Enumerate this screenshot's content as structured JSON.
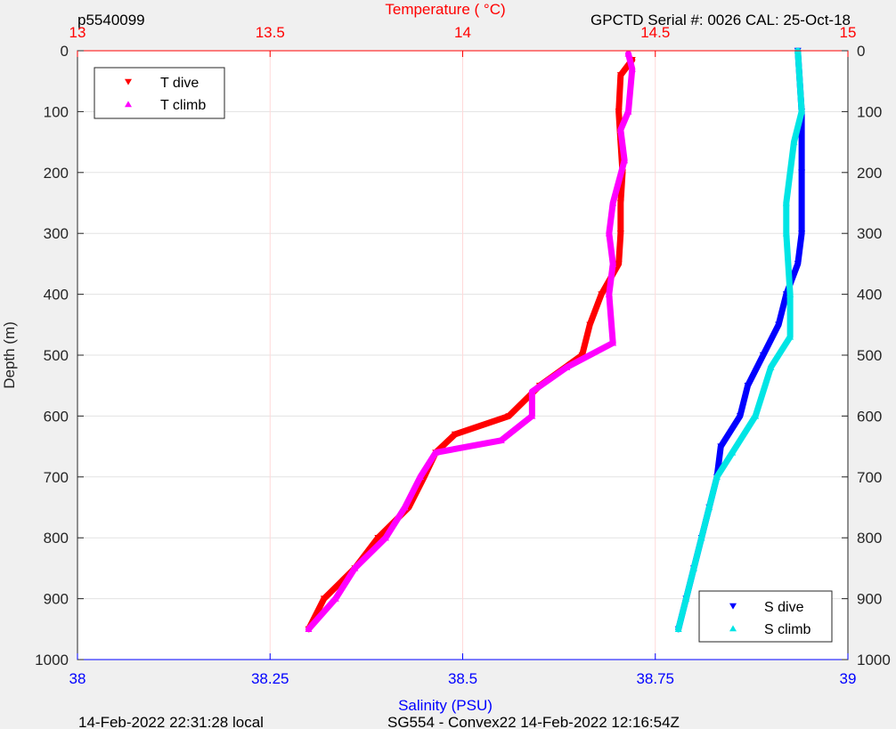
{
  "header": {
    "plot_id": "p5540099",
    "serial": "GPCTD Serial #: 0026 CAL: 25-Oct-18"
  },
  "footer": {
    "local_time": "14-Feb-2022 22:31:28 local",
    "mission": "SG554 - Convex22 14-Feb-2022 12:16:54Z"
  },
  "chart_data": {
    "type": "line",
    "title": "",
    "ylabel": "Depth (m)",
    "ylim": [
      0,
      1000
    ],
    "y_reversed": true,
    "y_ticks": [
      "0",
      "100",
      "200",
      "300",
      "400",
      "500",
      "600",
      "700",
      "800",
      "900",
      "1000"
    ],
    "x_top": {
      "label": "Temperature (    °C)",
      "range": [
        13,
        15
      ],
      "ticks": [
        "13",
        "13.5",
        "14",
        "14.5",
        "15"
      ],
      "color": "#ff0000"
    },
    "x_bottom": {
      "label": "Salinity (PSU)",
      "range": [
        38,
        39
      ],
      "ticks": [
        "38",
        "38.25",
        "38.5",
        "38.75",
        "39"
      ],
      "color": "#0000ff"
    },
    "grid": true,
    "legend_temperature": "top-left",
    "legend_salinity": "bottom-right",
    "series": [
      {
        "name": "T dive",
        "axis": "top",
        "color": "#ff0000",
        "marker": "triangle-down",
        "points": [
          [
            14.44,
            15
          ],
          [
            14.41,
            40
          ],
          [
            14.405,
            100
          ],
          [
            14.41,
            150
          ],
          [
            14.415,
            200
          ],
          [
            14.41,
            250
          ],
          [
            14.41,
            300
          ],
          [
            14.405,
            350
          ],
          [
            14.36,
            400
          ],
          [
            14.33,
            450
          ],
          [
            14.31,
            500
          ],
          [
            14.2,
            550
          ],
          [
            14.12,
            600
          ],
          [
            13.98,
            630
          ],
          [
            13.93,
            660
          ],
          [
            13.9,
            700
          ],
          [
            13.86,
            750
          ],
          [
            13.78,
            800
          ],
          [
            13.72,
            850
          ],
          [
            13.64,
            900
          ],
          [
            13.6,
            950
          ]
        ]
      },
      {
        "name": "T climb",
        "axis": "top",
        "color": "#ff00ff",
        "marker": "triangle-up",
        "points": [
          [
            14.43,
            5
          ],
          [
            14.44,
            30
          ],
          [
            14.43,
            100
          ],
          [
            14.41,
            130
          ],
          [
            14.42,
            180
          ],
          [
            14.39,
            250
          ],
          [
            14.38,
            300
          ],
          [
            14.39,
            350
          ],
          [
            14.38,
            400
          ],
          [
            14.39,
            480
          ],
          [
            14.27,
            520
          ],
          [
            14.18,
            560
          ],
          [
            14.18,
            600
          ],
          [
            14.1,
            640
          ],
          [
            13.93,
            660
          ],
          [
            13.89,
            700
          ],
          [
            13.85,
            750
          ],
          [
            13.8,
            800
          ],
          [
            13.72,
            850
          ],
          [
            13.67,
            900
          ],
          [
            13.6,
            950
          ]
        ]
      },
      {
        "name": "S dive",
        "axis": "bottom",
        "color": "#0000ff",
        "marker": "triangle-down",
        "points": [
          [
            38.935,
            0
          ],
          [
            38.94,
            100
          ],
          [
            38.94,
            200
          ],
          [
            38.94,
            300
          ],
          [
            38.935,
            350
          ],
          [
            38.92,
            400
          ],
          [
            38.91,
            450
          ],
          [
            38.89,
            500
          ],
          [
            38.87,
            550
          ],
          [
            38.86,
            600
          ],
          [
            38.835,
            650
          ],
          [
            38.83,
            700
          ],
          [
            38.82,
            750
          ],
          [
            38.81,
            800
          ],
          [
            38.8,
            850
          ],
          [
            38.79,
            900
          ],
          [
            38.78,
            950
          ]
        ]
      },
      {
        "name": "S climb",
        "axis": "bottom",
        "color": "#00e5e5",
        "marker": "triangle-up",
        "points": [
          [
            38.935,
            0
          ],
          [
            38.94,
            100
          ],
          [
            38.93,
            150
          ],
          [
            38.92,
            250
          ],
          [
            38.92,
            300
          ],
          [
            38.925,
            400
          ],
          [
            38.925,
            470
          ],
          [
            38.9,
            520
          ],
          [
            38.88,
            600
          ],
          [
            38.85,
            660
          ],
          [
            38.83,
            700
          ],
          [
            38.82,
            750
          ],
          [
            38.81,
            800
          ],
          [
            38.8,
            850
          ],
          [
            38.79,
            900
          ],
          [
            38.78,
            950
          ]
        ]
      }
    ]
  }
}
